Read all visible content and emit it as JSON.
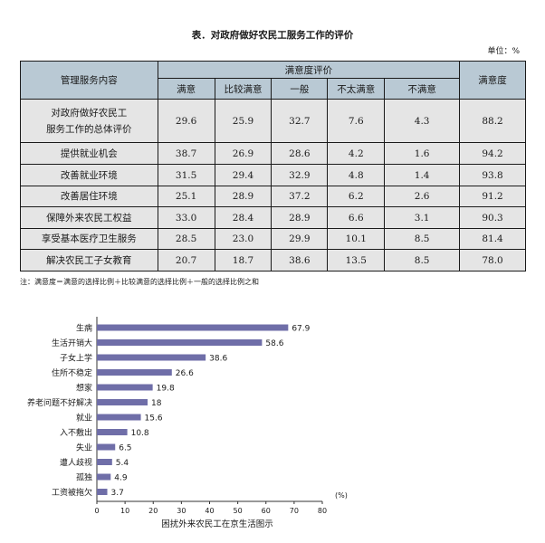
{
  "title": "表．对政府做好农民工服务工作的评价",
  "unit": "单位：%",
  "table": {
    "header_item": "管理服务内容",
    "header_group": "满意度评价",
    "header_last": "满意度",
    "columns": [
      "满意",
      "比较满意",
      "一般",
      "不太满意",
      "不满意"
    ],
    "rows": [
      {
        "label_lines": [
          "对政府做好农民工",
          "服务工作的总体评价"
        ],
        "values": [
          "29.6",
          "25.9",
          "32.7",
          "7.6",
          "4.3"
        ],
        "satisfaction": "88.2"
      },
      {
        "label_lines": [
          "提供就业机会"
        ],
        "values": [
          "38.7",
          "26.9",
          "28.6",
          "4.2",
          "1.6"
        ],
        "satisfaction": "94.2"
      },
      {
        "label_lines": [
          "改善就业环境"
        ],
        "values": [
          "31.5",
          "29.4",
          "32.9",
          "4.8",
          "1.4"
        ],
        "satisfaction": "93.8"
      },
      {
        "label_lines": [
          "改善居住环境"
        ],
        "values": [
          "25.1",
          "28.9",
          "37.2",
          "6.2",
          "2.6"
        ],
        "satisfaction": "91.2"
      },
      {
        "label_lines": [
          "保障外来农民工权益"
        ],
        "values": [
          "33.0",
          "28.4",
          "28.9",
          "6.6",
          "3.1"
        ],
        "satisfaction": "90.3"
      },
      {
        "label_lines": [
          "享受基本医疗卫生服务"
        ],
        "values": [
          "28.5",
          "23.0",
          "29.9",
          "10.1",
          "8.5"
        ],
        "satisfaction": "81.4"
      },
      {
        "label_lines": [
          "解决农民工子女教育"
        ],
        "values": [
          "20.7",
          "18.7",
          "38.6",
          "13.5",
          "8.5"
        ],
        "satisfaction": "78.0"
      }
    ]
  },
  "note": "注：满意度＝满意的选择比例＋比较满意的选择比例＋一般的选择比例之和",
  "colors": {
    "header_bg": "#b9c9d4",
    "row_bg": "#e5e5e5",
    "bar": "#6f6ea8"
  },
  "chart_data": {
    "type": "bar",
    "orientation": "horizontal",
    "title": "困扰外来农民工在京生活图示",
    "unit_label": "(%)",
    "categories": [
      "生病",
      "生活开销大",
      "子女上学",
      "住所不稳定",
      "想家",
      "养老问题不好解决",
      "就业",
      "入不敷出",
      "失业",
      "遭人歧视",
      "孤独",
      "工资被拖欠"
    ],
    "values": [
      67.9,
      58.6,
      38.6,
      26.6,
      19.8,
      18,
      15.6,
      10.8,
      6.5,
      5.4,
      4.9,
      3.7
    ],
    "value_labels": [
      "67.9",
      "58.6",
      "38.6",
      "26.6",
      "19.8",
      "18",
      "15.6",
      "10.8",
      "6.5",
      "5.4",
      "4.9",
      "3.7"
    ],
    "xlim": [
      0,
      80
    ],
    "xticks": [
      "0",
      "10",
      "20",
      "30",
      "40",
      "50",
      "60",
      "70",
      "80"
    ],
    "grid": false
  }
}
